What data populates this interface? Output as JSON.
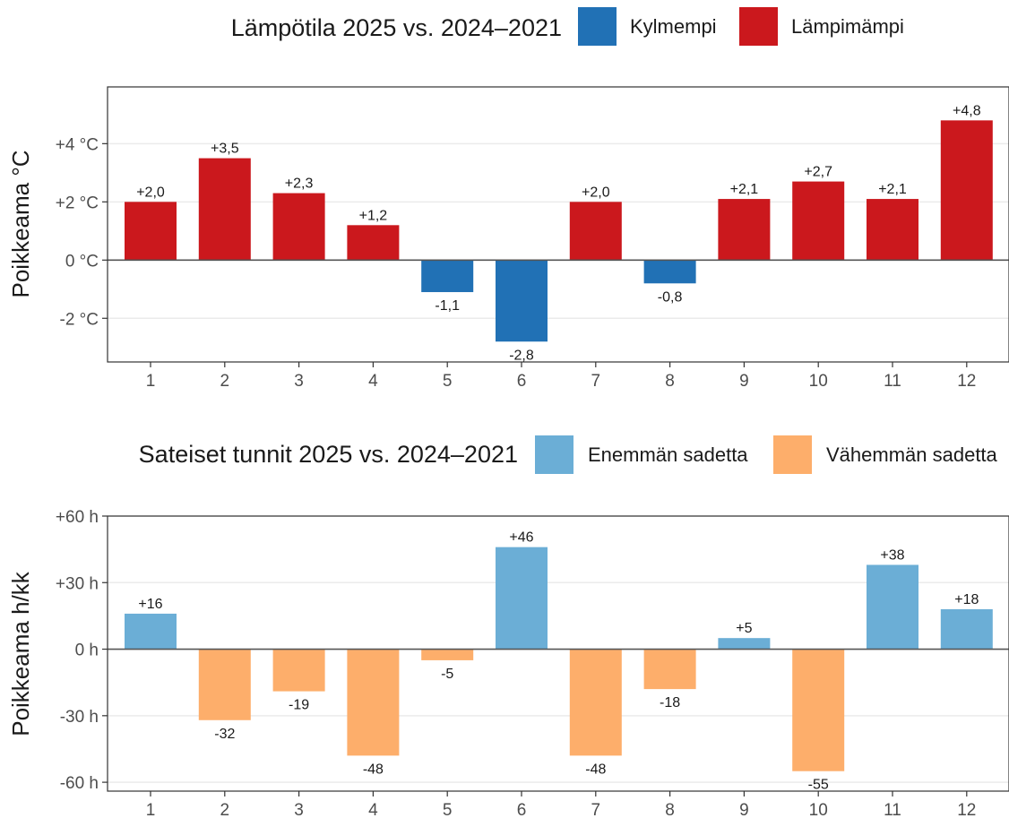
{
  "chart_data": [
    {
      "type": "bar",
      "legend_title": "Lämpötila 2025 vs. 2024–2021",
      "legend": [
        {
          "label": "Kylmempi",
          "color": "#2171b5"
        },
        {
          "label": "Lämpimämpi",
          "color": "#cb181d"
        }
      ],
      "legend_position": "top",
      "ylabel": "Poikkeama °C",
      "categories": [
        "1",
        "2",
        "3",
        "4",
        "5",
        "6",
        "7",
        "8",
        "9",
        "10",
        "11",
        "12"
      ],
      "values": [
        2.0,
        3.5,
        2.3,
        1.2,
        -1.1,
        -2.8,
        2.0,
        -0.8,
        2.1,
        2.7,
        2.1,
        4.8
      ],
      "value_labels": [
        "+2,0",
        "+3,5",
        "+2,3",
        "+1,2",
        "-1,1",
        "-2,8",
        "+2,0",
        "-0,8",
        "+2,1",
        "+2,7",
        "+2,1",
        "+4,8"
      ],
      "y_ticks": [
        {
          "value": -2,
          "label": "-2 °C"
        },
        {
          "value": 0,
          "label": "0 °C"
        },
        {
          "value": 2,
          "label": "+2 °C"
        },
        {
          "value": 4,
          "label": "+4 °C"
        }
      ],
      "ylim": [
        -3.5,
        5.95
      ],
      "grid": true
    },
    {
      "type": "bar",
      "legend_title": "Sateiset tunnit 2025 vs. 2024–2021",
      "legend": [
        {
          "label": "Enemmän sadetta",
          "color": "#6baed6"
        },
        {
          "label": "Vähemmän sadetta",
          "color": "#fdae6b"
        }
      ],
      "legend_position": "top",
      "ylabel": "Poikkeama h/kk",
      "categories": [
        "1",
        "2",
        "3",
        "4",
        "5",
        "6",
        "7",
        "8",
        "9",
        "10",
        "11",
        "12"
      ],
      "values": [
        16,
        -32,
        -19,
        -48,
        -5,
        46,
        -48,
        -18,
        5,
        -55,
        38,
        18
      ],
      "value_labels": [
        "+16",
        "-32",
        "-19",
        "-48",
        "-5",
        "+46",
        "-48",
        "-18",
        "+5",
        "-55",
        "+38",
        "+18"
      ],
      "y_ticks": [
        {
          "value": -60,
          "label": "-60 h"
        },
        {
          "value": -30,
          "label": "-30 h"
        },
        {
          "value": 0,
          "label": "0 h"
        },
        {
          "value": 30,
          "label": "+30 h"
        },
        {
          "value": 60,
          "label": "+60 h"
        }
      ],
      "ylim": [
        -64,
        60
      ],
      "grid": true
    }
  ]
}
